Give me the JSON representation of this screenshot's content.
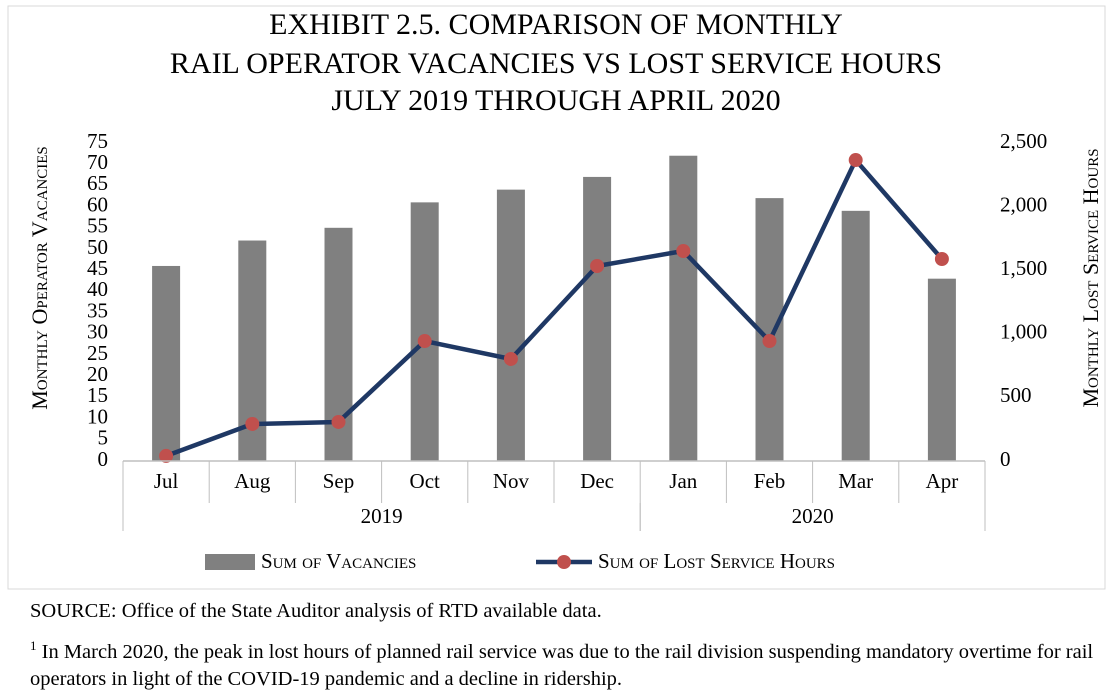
{
  "chart_data": {
    "type": "bar_line",
    "title": [
      "EXHIBIT 2.5. COMPARISON OF MONTHLY",
      "RAIL OPERATOR VACANCIES VS LOST SERVICE HOURS",
      "JULY 2019 THROUGH APRIL 2020"
    ],
    "y_label": "Monthly Operator Vacancies",
    "y2_label": "Monthly Lost Service Hours",
    "categories": [
      "Jul",
      "Aug",
      "Sep",
      "Oct",
      "Nov",
      "Dec",
      "Jan",
      "Feb",
      "Mar",
      "Apr"
    ],
    "groups": [
      {
        "label": "2019",
        "count": 6
      },
      {
        "label": "2020",
        "count": 4
      }
    ],
    "series": [
      {
        "name": "Sum of Vacancies",
        "type": "bar",
        "color": "#808080",
        "values": [
          46,
          52,
          55,
          61,
          64,
          67,
          72,
          62,
          59,
          43
        ]
      },
      {
        "name": "Sum of Lost Service Hours",
        "type": "line",
        "axis": "y2",
        "color": "#1f3864",
        "marker_color": "#c0504d",
        "values": [
          40,
          291,
          307,
          943,
          802,
          1533,
          1651,
          943,
          2366,
          1588
        ]
      }
    ],
    "ylim": [
      0,
      75
    ],
    "yticks": [
      0,
      5,
      10,
      15,
      20,
      25,
      30,
      35,
      40,
      45,
      50,
      55,
      60,
      65,
      70,
      75
    ],
    "y2lim": [
      0,
      2500
    ],
    "y2ticks": [
      0,
      500,
      {
        "value": 1000,
        "label": "1,000"
      },
      {
        "value": 1500,
        "label": "1,500"
      },
      {
        "value": 2000,
        "label": "2,000"
      },
      {
        "value": 2500,
        "label": "2,500"
      }
    ],
    "grid": false,
    "legend": "bottom"
  },
  "notes": {
    "source": "SOURCE: Office of the State Auditor analysis of RTD available data.",
    "footnote": {
      "marker": "1",
      "text": "In March 2020, the peak in lost hours of planned rail service was due to the rail division suspending mandatory overtime for rail operators in light of the COVID-19 pandemic and a decline in ridership."
    }
  }
}
